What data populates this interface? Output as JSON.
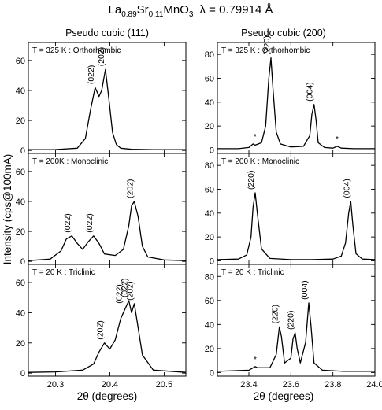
{
  "title": {
    "formula": {
      "base": "La",
      "sub1": "0.89",
      "el2": "Sr",
      "sub2": "0.11",
      "el3": "MnO",
      "sub3": "3"
    },
    "wavelength": "λ = 0.79914 Å"
  },
  "column_titles": [
    "Pseudo cubic (111)",
    "Pseudo cubic (200)"
  ],
  "ylabel": "Intensity (cps@100mA)",
  "xlabel": "2θ (degrees)",
  "chart_data": [
    {
      "type": "line",
      "col": 0,
      "row": 0,
      "phase": "T = 325 K : Orthorhombic",
      "xlim": [
        20.25,
        20.54
      ],
      "ylim": [
        -2,
        72
      ],
      "xticks": [
        20.3,
        20.4,
        20.5
      ],
      "yticks": [
        0,
        20,
        40,
        60
      ],
      "x": [
        20.25,
        20.3,
        20.34,
        20.355,
        20.365,
        20.373,
        20.38,
        20.385,
        20.392,
        20.398,
        20.405,
        20.412,
        20.42,
        20.44,
        20.48,
        20.54
      ],
      "y": [
        0.5,
        0.6,
        1.5,
        8,
        28,
        42,
        36,
        40,
        54,
        35,
        12,
        4,
        1.5,
        0.8,
        0.5,
        0.5
      ],
      "peaks": [
        {
          "label": "(022)",
          "x": 20.373,
          "y": 42
        },
        {
          "label": "(202)",
          "x": 20.392,
          "y": 54
        }
      ],
      "markers": []
    },
    {
      "type": "line",
      "col": 0,
      "row": 1,
      "phase": "T = 200K : Monoclinic",
      "xlim": [
        20.25,
        20.54
      ],
      "ylim": [
        -2,
        72
      ],
      "xticks": [
        20.3,
        20.4,
        20.5
      ],
      "yticks": [
        0,
        20,
        40,
        60
      ],
      "x": [
        20.25,
        20.29,
        20.31,
        20.32,
        20.33,
        20.34,
        20.35,
        20.36,
        20.37,
        20.38,
        20.39,
        20.41,
        20.425,
        20.435,
        20.44,
        20.445,
        20.452,
        20.46,
        20.47,
        20.5,
        20.54
      ],
      "y": [
        0.5,
        1.5,
        7,
        15,
        17,
        12,
        8,
        13,
        17,
        12,
        5,
        4,
        8,
        24,
        37,
        40,
        30,
        10,
        3,
        1,
        0.5
      ],
      "peaks": [
        {
          "label": "(022̄)",
          "x": 20.33,
          "y": 17
        },
        {
          "label": "(022)",
          "x": 20.37,
          "y": 17
        },
        {
          "label": "(202)",
          "x": 20.445,
          "y": 40
        }
      ],
      "markers": []
    },
    {
      "type": "line",
      "col": 0,
      "row": 2,
      "phase": "T = 20 K : Triclinic",
      "xlim": [
        20.25,
        20.54
      ],
      "ylim": [
        -2,
        72
      ],
      "xticks": [
        20.3,
        20.4,
        20.5
      ],
      "yticks": [
        0,
        20,
        40,
        60
      ],
      "x": [
        20.25,
        20.3,
        20.35,
        20.37,
        20.38,
        20.39,
        20.4,
        20.41,
        20.42,
        20.43,
        20.435,
        20.44,
        20.445,
        20.45,
        20.46,
        20.48,
        20.54
      ],
      "y": [
        0.5,
        0.8,
        2,
        6,
        14,
        20,
        16,
        22,
        36,
        44,
        48,
        40,
        46,
        35,
        12,
        2,
        0.5
      ],
      "peaks": [
        {
          "label": "(202̄)",
          "x": 20.39,
          "y": 20
        },
        {
          "label": "(022)",
          "x": 20.425,
          "y": 44
        },
        {
          "label": "(022̄)",
          "x": 20.435,
          "y": 48
        },
        {
          "label": "(202)",
          "x": 20.445,
          "y": 46
        }
      ],
      "markers": []
    },
    {
      "type": "line",
      "col": 1,
      "row": 0,
      "phase": "T = 325 K : Orthorhombic",
      "xlim": [
        23.25,
        24.0
      ],
      "ylim": [
        -3,
        90
      ],
      "xticks": [
        23.4,
        23.6,
        23.8,
        24.0
      ],
      "yticks": [
        0,
        20,
        40,
        60,
        80
      ],
      "x": [
        23.25,
        23.35,
        23.4,
        23.42,
        23.43,
        23.46,
        23.48,
        23.495,
        23.505,
        23.515,
        23.53,
        23.55,
        23.6,
        23.66,
        23.69,
        23.7,
        23.71,
        23.72,
        23.73,
        23.76,
        23.8,
        23.82,
        23.84,
        23.9,
        24.0
      ],
      "y": [
        1,
        1,
        2,
        5,
        4,
        6,
        20,
        60,
        77,
        50,
        15,
        5,
        2.5,
        3,
        12,
        30,
        38,
        25,
        6,
        2,
        1.5,
        3,
        1.5,
        1,
        1
      ],
      "peaks": [
        {
          "label": "(220)",
          "x": 23.505,
          "y": 77
        },
        {
          "label": "(004)",
          "x": 23.71,
          "y": 38
        }
      ],
      "markers": [
        {
          "label": "*",
          "x": 23.43,
          "y": 5
        },
        {
          "label": "*",
          "x": 23.82,
          "y": 3
        }
      ]
    },
    {
      "type": "line",
      "col": 1,
      "row": 1,
      "phase": "T = 200 K : Monoclinic",
      "xlim": [
        23.25,
        24.0
      ],
      "ylim": [
        -3,
        90
      ],
      "xticks": [
        23.4,
        23.6,
        23.8,
        24.0
      ],
      "yticks": [
        0,
        20,
        40,
        60,
        80
      ],
      "x": [
        23.25,
        23.35,
        23.39,
        23.41,
        23.42,
        23.43,
        23.44,
        23.46,
        23.5,
        23.6,
        23.7,
        23.8,
        23.84,
        23.86,
        23.875,
        23.885,
        23.895,
        23.91,
        23.94,
        24.0
      ],
      "y": [
        1,
        1.5,
        5,
        20,
        45,
        57,
        40,
        10,
        2,
        1,
        1,
        1.5,
        4,
        15,
        40,
        50,
        30,
        6,
        1.5,
        1
      ],
      "peaks": [
        {
          "label": "(220)",
          "x": 23.43,
          "y": 57
        },
        {
          "label": "(004)",
          "x": 23.885,
          "y": 50
        }
      ],
      "markers": []
    },
    {
      "type": "line",
      "col": 1,
      "row": 2,
      "phase": "T = 20 K : Triclinic",
      "xlim": [
        23.25,
        24.0
      ],
      "ylim": [
        -3,
        90
      ],
      "xticks": [
        23.4,
        23.6,
        23.8,
        24.0
      ],
      "yticks": [
        0,
        20,
        40,
        60,
        80
      ],
      "x": [
        23.25,
        23.4,
        23.43,
        23.44,
        23.5,
        23.53,
        23.545,
        23.555,
        23.57,
        23.6,
        23.61,
        23.62,
        23.63,
        23.645,
        23.67,
        23.685,
        23.695,
        23.71,
        23.75,
        23.85,
        24.0
      ],
      "y": [
        1,
        2,
        5,
        4,
        4,
        15,
        38,
        30,
        8,
        12,
        28,
        33,
        20,
        8,
        25,
        58,
        40,
        8,
        2,
        1,
        1
      ],
      "peaks": [
        {
          "label": "(22̄0)",
          "x": 23.545,
          "y": 38
        },
        {
          "label": "(220)",
          "x": 23.62,
          "y": 33
        },
        {
          "label": "(004)",
          "x": 23.685,
          "y": 58
        }
      ],
      "markers": [
        {
          "label": "*",
          "x": 23.43,
          "y": 5
        }
      ]
    }
  ]
}
